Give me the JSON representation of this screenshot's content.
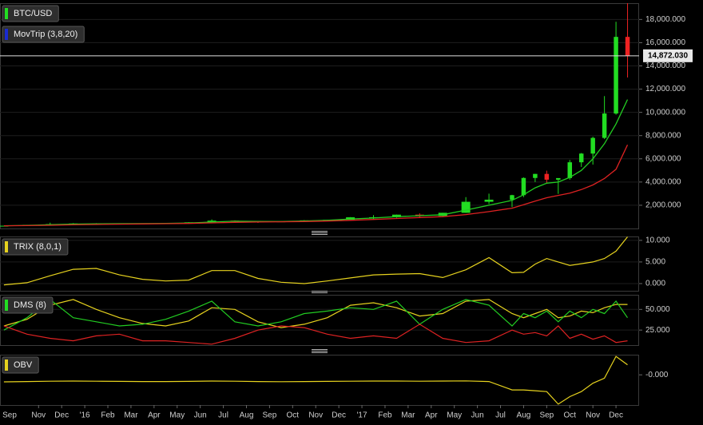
{
  "chart_data": [
    {
      "type": "candlestick",
      "legend": [
        {
          "name": "BTC/USD",
          "color": "#22dd22"
        },
        {
          "name": "MovTrip (3,8,20)",
          "color": "#1a2bd0"
        }
      ],
      "x": [
        0.5,
        1.5,
        2.5,
        3.5,
        4.5,
        5.5,
        6.5,
        7.5,
        8.5,
        9.5,
        10.5,
        11.5,
        12.5,
        13.5,
        14.5,
        15.5,
        16.5,
        17.5,
        18.5,
        19.5,
        20.5,
        21.5,
        22.5,
        23,
        23.5,
        24,
        24.5,
        25,
        25.5,
        26,
        26.5,
        27,
        27.5
      ],
      "open": [
        230,
        236,
        313,
        377,
        430,
        369,
        437,
        416,
        448,
        531,
        673,
        624,
        575,
        609,
        700,
        742,
        963,
        970,
        1190,
        1080,
        1350,
        2300,
        2480,
        2870,
        4350,
        4700,
        4200,
        4340,
        5700,
        6450,
        7800,
        9900,
        16500
      ],
      "high": [
        240,
        315,
        500,
        465,
        460,
        440,
        440,
        465,
        550,
        780,
        700,
        630,
        620,
        720,
        750,
        980,
        1150,
        1200,
        1300,
        1350,
        2700,
        3000,
        2900,
        4400,
        4700,
        4980,
        4300,
        5900,
        6500,
        7900,
        11400,
        17800,
        19700
      ],
      "low": [
        225,
        236,
        310,
        350,
        360,
        365,
        400,
        410,
        440,
        530,
        600,
        480,
        570,
        605,
        690,
        740,
        750,
        920,
        890,
        1060,
        1340,
        2100,
        1840,
        2700,
        4000,
        3900,
        2980,
        4200,
        5300,
        5500,
        7700,
        9800,
        13000
      ],
      "close": [
        236,
        313,
        377,
        430,
        369,
        437,
        416,
        448,
        531,
        673,
        624,
        575,
        609,
        700,
        742,
        963,
        970,
        1190,
        1080,
        1350,
        2300,
        2480,
        2870,
        4350,
        4700,
        4200,
        4340,
        5700,
        6450,
        7800,
        9900,
        16500,
        14872
      ],
      "up_color": "#22dd22",
      "down_color": "#ee2222",
      "overlay": [
        {
          "color": "#22cc22",
          "values": [
            235,
            265,
            320,
            375,
            400,
            410,
            420,
            432,
            470,
            560,
            625,
            610,
            600,
            640,
            700,
            810,
            900,
            1020,
            1100,
            1180,
            1580,
            2000,
            2420,
            2900,
            3500,
            3900,
            4000,
            4400,
            5000,
            6000,
            7300,
            9000,
            11100
          ]
        },
        {
          "color": "#dd2222",
          "values": [
            232,
            245,
            275,
            315,
            345,
            372,
            392,
            412,
            432,
            480,
            530,
            560,
            580,
            600,
            640,
            700,
            780,
            860,
            940,
            1020,
            1200,
            1450,
            1750,
            2050,
            2350,
            2650,
            2850,
            3050,
            3350,
            3750,
            4300,
            5100,
            7200
          ]
        }
      ],
      "last": {
        "value": 14872.03,
        "label": "14,872.030"
      },
      "xlim": [
        0.33,
        28
      ],
      "xticks": [
        {
          "value": 0,
          "label": "Sep"
        },
        {
          "value": 2,
          "label": "Nov"
        },
        {
          "value": 3,
          "label": "Dec"
        },
        {
          "value": 4,
          "label": "'16"
        },
        {
          "value": 5,
          "label": "Feb"
        },
        {
          "value": 6,
          "label": "Mar"
        },
        {
          "value": 7,
          "label": "Apr"
        },
        {
          "value": 8,
          "label": "May"
        },
        {
          "value": 9,
          "label": "Jun"
        },
        {
          "value": 10,
          "label": "Jul"
        },
        {
          "value": 11,
          "label": "Aug"
        },
        {
          "value": 12,
          "label": "Sep"
        },
        {
          "value": 13,
          "label": "Oct"
        },
        {
          "value": 14,
          "label": "Nov"
        },
        {
          "value": 15,
          "label": "Dec"
        },
        {
          "value": 16,
          "label": "'17"
        },
        {
          "value": 17,
          "label": "Feb"
        },
        {
          "value": 18,
          "label": "Mar"
        },
        {
          "value": 19,
          "label": "Apr"
        },
        {
          "value": 20,
          "label": "May"
        },
        {
          "value": 21,
          "label": "Jun"
        },
        {
          "value": 22,
          "label": "Jul"
        },
        {
          "value": 23,
          "label": "Aug"
        },
        {
          "value": 24,
          "label": "Sep"
        },
        {
          "value": 25,
          "label": "Oct"
        },
        {
          "value": 26,
          "label": "Nov"
        },
        {
          "value": 27,
          "label": "Dec"
        }
      ],
      "ylim": [
        0,
        19400
      ],
      "yticks": [
        {
          "value": 2000,
          "label": "2,000.000"
        },
        {
          "value": 4000,
          "label": "4,000.000"
        },
        {
          "value": 6000,
          "label": "6,000.000"
        },
        {
          "value": 8000,
          "label": "8,000.000"
        },
        {
          "value": 10000,
          "label": "10,000.000"
        },
        {
          "value": 12000,
          "label": "12,000.000"
        },
        {
          "value": 14000,
          "label": "14,000.000"
        },
        {
          "value": 16000,
          "label": "16,000.000"
        },
        {
          "value": 18000,
          "label": "18,000.000"
        }
      ],
      "grid": true
    },
    {
      "type": "line",
      "legend": [
        {
          "name": "TRIX (8,0,1)",
          "color": "#e6d21e"
        }
      ],
      "x": [
        0.5,
        1.5,
        2.5,
        3.5,
        4.5,
        5.5,
        6.5,
        7.5,
        8.5,
        9.5,
        10.5,
        11.5,
        12.5,
        13.5,
        14.5,
        15.5,
        16.5,
        17.5,
        18.5,
        19.5,
        20.5,
        21.5,
        22.5,
        23,
        23.5,
        24,
        24.5,
        25,
        25.5,
        26,
        26.5,
        27,
        27.5
      ],
      "series": [
        {
          "color": "#e6d21e",
          "values": [
            -0.3,
            0.2,
            1.8,
            3.3,
            3.5,
            2.0,
            1.0,
            0.6,
            0.8,
            3.0,
            3.0,
            1.2,
            0.3,
            0,
            0.6,
            1.3,
            2.0,
            2.2,
            2.3,
            1.4,
            3.2,
            6.0,
            2.5,
            2.6,
            4.5,
            5.8,
            5.0,
            4.2,
            4.6,
            5.0,
            5.8,
            7.5,
            10.8
          ]
        }
      ],
      "ylim": [
        -1.67,
        10.9
      ],
      "yticks": [
        {
          "value": 0,
          "label": "0.000"
        },
        {
          "value": 5,
          "label": "5.000"
        },
        {
          "value": 10,
          "label": "10.000"
        }
      ],
      "grid": true
    },
    {
      "type": "line",
      "legend": [
        {
          "name": "DMS (8)",
          "color": "#22dd22"
        }
      ],
      "x": [
        0.5,
        1.5,
        2.5,
        3.5,
        4.5,
        5.5,
        6.5,
        7.5,
        8.5,
        9.5,
        10.5,
        11.5,
        12.5,
        13.5,
        14.5,
        15.5,
        16.5,
        17.5,
        18.5,
        19.5,
        20.5,
        21.5,
        22.5,
        23,
        23.5,
        24,
        24.5,
        25,
        25.5,
        26,
        26.5,
        27,
        27.5
      ],
      "series": [
        {
          "color": "#e6d21e",
          "values": [
            30,
            38,
            55,
            62,
            50,
            40,
            33,
            30,
            36,
            52,
            50,
            35,
            28,
            32,
            40,
            55,
            58,
            52,
            42,
            45,
            60,
            62,
            45,
            40,
            45,
            50,
            40,
            42,
            48,
            46,
            52,
            56,
            56
          ]
        },
        {
          "color": "#22cc22",
          "values": [
            25,
            40,
            62,
            40,
            35,
            30,
            32,
            38,
            48,
            60,
            35,
            30,
            35,
            45,
            48,
            52,
            50,
            60,
            32,
            50,
            62,
            55,
            30,
            45,
            40,
            48,
            35,
            48,
            40,
            50,
            45,
            60,
            40
          ]
        },
        {
          "color": "#dd2222",
          "values": [
            30,
            20,
            15,
            12,
            18,
            20,
            12,
            12,
            10,
            8,
            15,
            25,
            30,
            28,
            20,
            15,
            18,
            15,
            32,
            15,
            10,
            12,
            25,
            20,
            22,
            18,
            30,
            15,
            20,
            14,
            18,
            10,
            12
          ]
        }
      ],
      "ylim": [
        6.8,
        67.7
      ],
      "yticks": [
        {
          "value": 25,
          "label": "25.000"
        },
        {
          "value": 50,
          "label": "50.000"
        }
      ],
      "grid": true
    },
    {
      "type": "line",
      "legend": [
        {
          "name": "OBV",
          "color": "#e6d21e"
        }
      ],
      "x": [
        0.5,
        1.5,
        2.5,
        3.5,
        4.5,
        5.5,
        6.5,
        7.5,
        8.5,
        9.5,
        10.5,
        11.5,
        12.5,
        13.5,
        14.5,
        15.5,
        16.5,
        17.5,
        18.5,
        19.5,
        20.5,
        21.5,
        22.5,
        23,
        23.5,
        24,
        24.5,
        25,
        25.5,
        26,
        26.5,
        27,
        27.5
      ],
      "series": [
        {
          "color": "#e6d21e",
          "values": [
            -0.42,
            -0.4,
            -0.38,
            -0.37,
            -0.38,
            -0.39,
            -0.4,
            -0.4,
            -0.39,
            -0.37,
            -0.38,
            -0.4,
            -0.41,
            -0.4,
            -0.39,
            -0.38,
            -0.37,
            -0.37,
            -0.38,
            -0.37,
            -0.36,
            -0.4,
            -0.9,
            -0.9,
            -0.95,
            -1.0,
            -1.75,
            -1.3,
            -1.0,
            -0.5,
            -0.2,
            1.1,
            0.6
          ]
        }
      ],
      "ylim": [
        -1.8,
        1.2
      ],
      "yticks": [
        {
          "value": 0,
          "label": "-0.000"
        }
      ],
      "grid": false
    }
  ]
}
